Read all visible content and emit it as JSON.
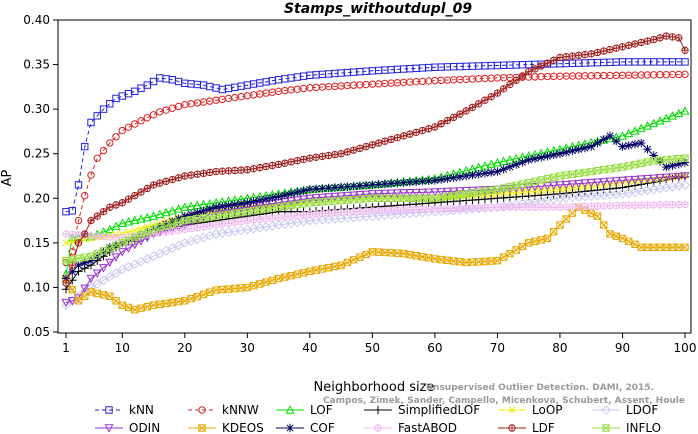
{
  "chart_data": {
    "type": "line",
    "title": "Stamps_withoutdupl_09",
    "xlabel": "Neighborhood size",
    "ylabel": "AP",
    "xlim": [
      1,
      100
    ],
    "ylim": [
      0.05,
      0.4
    ],
    "xticks": [
      1,
      10,
      20,
      30,
      40,
      50,
      60,
      70,
      80,
      90,
      100
    ],
    "yticks": [
      0.05,
      0.1,
      0.15,
      0.2,
      0.25,
      0.3,
      0.35,
      0.4
    ],
    "xtick_labels": [
      "1",
      "10",
      "20",
      "30",
      "40",
      "50",
      "60",
      "70",
      "80",
      "90",
      "100"
    ],
    "ytick_labels": [
      "0.05",
      "0.10",
      "0.15",
      "0.20",
      "0.25",
      "0.30",
      "0.35",
      "0.40"
    ],
    "grid": false,
    "legend_position": "bottom",
    "watermark": [
      "Unsupervised Outlier Detection. DAMI, 2015.",
      "Campos, Zimek, Sander, Campello, Micenkova, Schubert, Assent, Houle"
    ],
    "series": [
      {
        "name": "kNN",
        "color": "#2222dd",
        "marker": "square",
        "dashed": true,
        "points": [
          [
            1,
            0.185
          ],
          [
            2,
            0.186
          ],
          [
            3,
            0.215
          ],
          [
            4,
            0.258
          ],
          [
            5,
            0.285
          ],
          [
            7,
            0.3
          ],
          [
            9,
            0.312
          ],
          [
            12,
            0.32
          ],
          [
            14,
            0.327
          ],
          [
            16,
            0.335
          ],
          [
            18,
            0.333
          ],
          [
            20,
            0.329
          ],
          [
            23,
            0.327
          ],
          [
            26,
            0.322
          ],
          [
            30,
            0.327
          ],
          [
            35,
            0.333
          ],
          [
            40,
            0.338
          ],
          [
            50,
            0.343
          ],
          [
            60,
            0.347
          ],
          [
            70,
            0.349
          ],
          [
            80,
            0.351
          ],
          [
            90,
            0.353
          ],
          [
            100,
            0.353
          ]
        ]
      },
      {
        "name": "kNNW",
        "color": "#dd2222",
        "marker": "circle",
        "dashed": true,
        "points": [
          [
            1,
            0.128
          ],
          [
            2,
            0.14
          ],
          [
            3,
            0.175
          ],
          [
            4,
            0.203
          ],
          [
            5,
            0.226
          ],
          [
            6,
            0.245
          ],
          [
            8,
            0.262
          ],
          [
            10,
            0.276
          ],
          [
            13,
            0.287
          ],
          [
            16,
            0.297
          ],
          [
            20,
            0.305
          ],
          [
            25,
            0.31
          ],
          [
            30,
            0.315
          ],
          [
            35,
            0.32
          ],
          [
            40,
            0.324
          ],
          [
            50,
            0.328
          ],
          [
            60,
            0.332
          ],
          [
            70,
            0.335
          ],
          [
            80,
            0.337
          ],
          [
            90,
            0.338
          ],
          [
            100,
            0.339
          ]
        ]
      },
      {
        "name": "LOF",
        "color": "#00dd00",
        "marker": "triangle-up",
        "dashed": false,
        "points": [
          [
            1,
            0.115
          ],
          [
            2,
            0.156
          ],
          [
            5,
            0.157
          ],
          [
            8,
            0.165
          ],
          [
            10,
            0.172
          ],
          [
            15,
            0.18
          ],
          [
            20,
            0.19
          ],
          [
            25,
            0.195
          ],
          [
            30,
            0.2
          ],
          [
            35,
            0.205
          ],
          [
            40,
            0.21
          ],
          [
            50,
            0.215
          ],
          [
            60,
            0.222
          ],
          [
            70,
            0.24
          ],
          [
            80,
            0.255
          ],
          [
            90,
            0.27
          ],
          [
            100,
            0.298
          ]
        ]
      },
      {
        "name": "SimplifiedLOF",
        "color": "#000000",
        "marker": "plus",
        "dashed": false,
        "points": [
          [
            1,
            0.098
          ],
          [
            3,
            0.118
          ],
          [
            5,
            0.125
          ],
          [
            8,
            0.14
          ],
          [
            10,
            0.15
          ],
          [
            15,
            0.16
          ],
          [
            20,
            0.17
          ],
          [
            25,
            0.175
          ],
          [
            30,
            0.18
          ],
          [
            35,
            0.185
          ],
          [
            40,
            0.185
          ],
          [
            50,
            0.19
          ],
          [
            60,
            0.195
          ],
          [
            70,
            0.2
          ],
          [
            80,
            0.205
          ],
          [
            90,
            0.212
          ],
          [
            100,
            0.224
          ]
        ]
      },
      {
        "name": "LoOP",
        "color": "#eeee00",
        "marker": "x",
        "dashed": false,
        "points": [
          [
            1,
            0.15
          ],
          [
            5,
            0.155
          ],
          [
            10,
            0.16
          ],
          [
            15,
            0.17
          ],
          [
            20,
            0.18
          ],
          [
            25,
            0.185
          ],
          [
            30,
            0.19
          ],
          [
            40,
            0.195
          ],
          [
            50,
            0.2
          ],
          [
            60,
            0.2
          ],
          [
            70,
            0.205
          ],
          [
            80,
            0.21
          ],
          [
            90,
            0.218
          ],
          [
            100,
            0.225
          ]
        ]
      },
      {
        "name": "LDOF",
        "color": "#c8c8f4",
        "marker": "diamond",
        "dashed": false,
        "points": [
          [
            1,
            0.08
          ],
          [
            5,
            0.1
          ],
          [
            10,
            0.12
          ],
          [
            15,
            0.135
          ],
          [
            20,
            0.15
          ],
          [
            25,
            0.16
          ],
          [
            30,
            0.165
          ],
          [
            35,
            0.17
          ],
          [
            40,
            0.175
          ],
          [
            50,
            0.18
          ],
          [
            60,
            0.185
          ],
          [
            70,
            0.19
          ],
          [
            80,
            0.2
          ],
          [
            90,
            0.205
          ],
          [
            100,
            0.215
          ]
        ]
      },
      {
        "name": "ODIN",
        "color": "#9933cc",
        "marker": "triangle-down",
        "dashed": false,
        "points": [
          [
            1,
            0.083
          ],
          [
            2,
            0.085
          ],
          [
            3,
            0.088
          ],
          [
            5,
            0.11
          ],
          [
            10,
            0.14
          ],
          [
            15,
            0.16
          ],
          [
            20,
            0.17
          ],
          [
            25,
            0.185
          ],
          [
            30,
            0.19
          ],
          [
            40,
            0.2
          ],
          [
            50,
            0.205
          ],
          [
            60,
            0.207
          ],
          [
            70,
            0.21
          ],
          [
            80,
            0.215
          ],
          [
            90,
            0.22
          ],
          [
            100,
            0.225
          ]
        ]
      },
      {
        "name": "KDEOS",
        "color": "#e8a800",
        "marker": "square-x",
        "dashed": false,
        "points": [
          [
            1,
            0.11
          ],
          [
            3,
            0.085
          ],
          [
            5,
            0.095
          ],
          [
            8,
            0.09
          ],
          [
            10,
            0.08
          ],
          [
            12,
            0.075
          ],
          [
            15,
            0.08
          ],
          [
            20,
            0.085
          ],
          [
            25,
            0.097
          ],
          [
            30,
            0.1
          ],
          [
            35,
            0.11
          ],
          [
            40,
            0.118
          ],
          [
            45,
            0.125
          ],
          [
            50,
            0.14
          ],
          [
            55,
            0.138
          ],
          [
            60,
            0.132
          ],
          [
            65,
            0.128
          ],
          [
            70,
            0.13
          ],
          [
            75,
            0.15
          ],
          [
            78,
            0.155
          ],
          [
            80,
            0.17
          ],
          [
            83,
            0.19
          ],
          [
            86,
            0.18
          ],
          [
            88,
            0.16
          ],
          [
            90,
            0.155
          ],
          [
            93,
            0.145
          ],
          [
            96,
            0.145
          ],
          [
            100,
            0.145
          ]
        ]
      },
      {
        "name": "COF",
        "color": "#000066",
        "marker": "asterisk",
        "dashed": false,
        "points": [
          [
            1,
            0.11
          ],
          [
            3,
            0.125
          ],
          [
            5,
            0.13
          ],
          [
            8,
            0.145
          ],
          [
            10,
            0.15
          ],
          [
            15,
            0.165
          ],
          [
            20,
            0.18
          ],
          [
            25,
            0.19
          ],
          [
            30,
            0.195
          ],
          [
            35,
            0.202
          ],
          [
            40,
            0.21
          ],
          [
            50,
            0.215
          ],
          [
            60,
            0.22
          ],
          [
            70,
            0.23
          ],
          [
            75,
            0.243
          ],
          [
            80,
            0.25
          ],
          [
            85,
            0.258
          ],
          [
            88,
            0.27
          ],
          [
            90,
            0.258
          ],
          [
            93,
            0.262
          ],
          [
            95,
            0.248
          ],
          [
            97,
            0.235
          ],
          [
            100,
            0.24
          ]
        ]
      },
      {
        "name": "FastABOD",
        "color": "#f0b8f0",
        "marker": "circle-plus",
        "dashed": false,
        "points": [
          [
            1,
            0.16
          ],
          [
            5,
            0.158
          ],
          [
            10,
            0.156
          ],
          [
            15,
            0.16
          ],
          [
            20,
            0.165
          ],
          [
            30,
            0.175
          ],
          [
            40,
            0.182
          ],
          [
            50,
            0.186
          ],
          [
            60,
            0.188
          ],
          [
            70,
            0.19
          ],
          [
            80,
            0.19
          ],
          [
            90,
            0.192
          ],
          [
            100,
            0.193
          ]
        ]
      },
      {
        "name": "LDF",
        "color": "#a02020",
        "marker": "circle-plus",
        "dashed": false,
        "points": [
          [
            1,
            0.105
          ],
          [
            2,
            0.125
          ],
          [
            3,
            0.15
          ],
          [
            4,
            0.16
          ],
          [
            5,
            0.175
          ],
          [
            8,
            0.19
          ],
          [
            10,
            0.195
          ],
          [
            15,
            0.215
          ],
          [
            20,
            0.225
          ],
          [
            25,
            0.23
          ],
          [
            30,
            0.232
          ],
          [
            35,
            0.238
          ],
          [
            40,
            0.245
          ],
          [
            45,
            0.25
          ],
          [
            50,
            0.26
          ],
          [
            55,
            0.27
          ],
          [
            60,
            0.28
          ],
          [
            65,
            0.298
          ],
          [
            70,
            0.318
          ],
          [
            75,
            0.342
          ],
          [
            80,
            0.358
          ],
          [
            85,
            0.362
          ],
          [
            90,
            0.37
          ],
          [
            95,
            0.378
          ],
          [
            97,
            0.382
          ],
          [
            99,
            0.38
          ],
          [
            100,
            0.366
          ]
        ]
      },
      {
        "name": "INFLO",
        "color": "#99dd44",
        "marker": "hourglass",
        "dashed": false,
        "points": [
          [
            1,
            0.13
          ],
          [
            5,
            0.135
          ],
          [
            10,
            0.15
          ],
          [
            15,
            0.165
          ],
          [
            20,
            0.175
          ],
          [
            30,
            0.185
          ],
          [
            40,
            0.195
          ],
          [
            50,
            0.2
          ],
          [
            60,
            0.2
          ],
          [
            70,
            0.21
          ],
          [
            80,
            0.225
          ],
          [
            90,
            0.235
          ],
          [
            95,
            0.242
          ],
          [
            100,
            0.245
          ]
        ]
      }
    ]
  }
}
